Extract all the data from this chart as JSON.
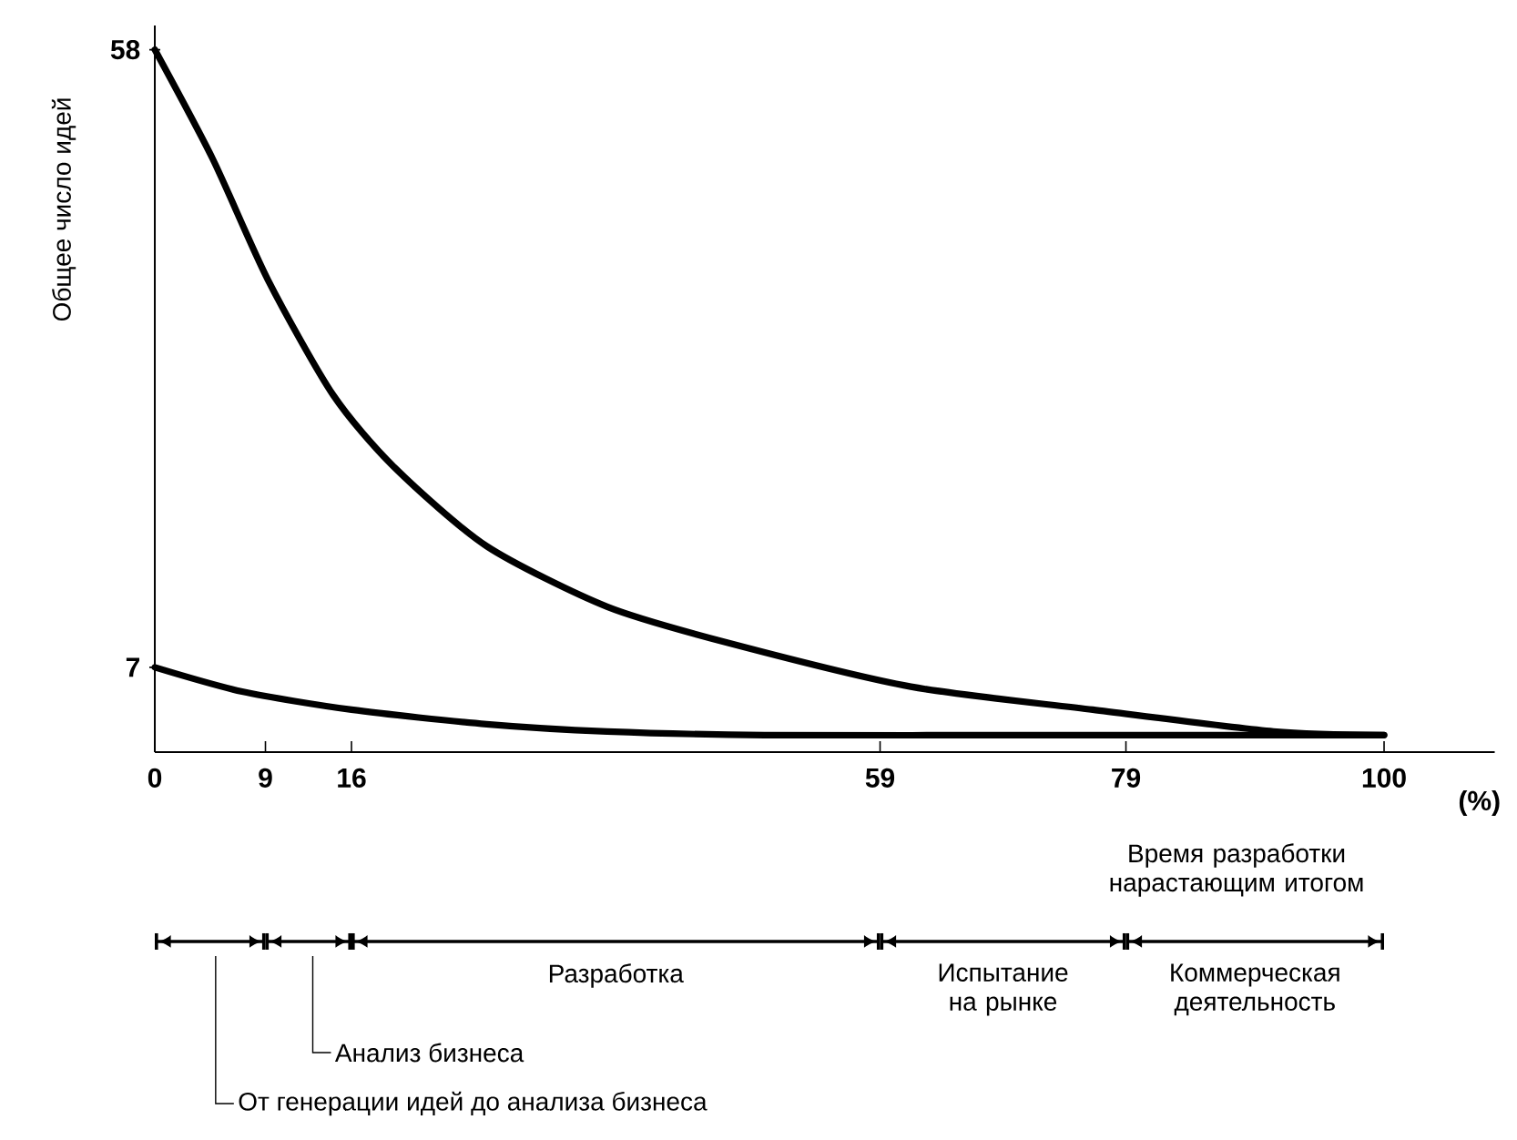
{
  "chart_data": {
    "type": "line",
    "xlabel": "Время разработки нарастающим итогом",
    "ylabel": "Общее число идей",
    "xlim": [
      0,
      109
    ],
    "ylim": [
      0,
      60
    ],
    "xticks": [
      0,
      9,
      16,
      59,
      79,
      100
    ],
    "yticks": [
      7,
      58
    ],
    "series": [
      {
        "color": "#000000",
        "x": [
          0,
          4.7,
          9.2,
          14.5,
          19.5,
          27,
          36.8,
          46.7,
          61.5,
          76.3,
          91,
          100
        ],
        "values": [
          58,
          49,
          39,
          29.5,
          23.5,
          17,
          12,
          9,
          5.4,
          3.5,
          1.7,
          1.4
        ]
      },
      {
        "color": "#000000",
        "x": [
          0,
          7.1,
          16,
          27,
          36.8,
          49.6,
          70,
          100
        ],
        "values": [
          7,
          5,
          3.5,
          2.3,
          1.7,
          1.4,
          1.4,
          1.4
        ]
      }
    ],
    "annotations": [
      "От генерации идей до анализа бизнеса",
      "Анализ бизнеса",
      "Разработка",
      "Испытание на рынке",
      "Коммерческая деятельность",
      "(%)"
    ]
  }
}
